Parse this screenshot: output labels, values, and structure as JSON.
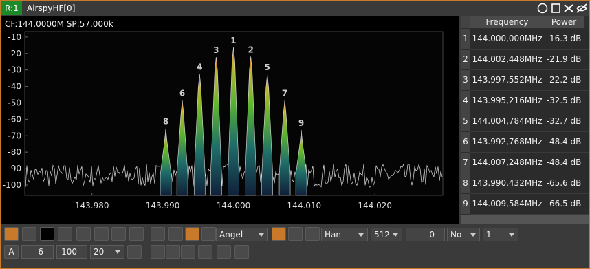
{
  "title_bar": {
    "badge": "R:1",
    "device": "AirspyHF[0]"
  },
  "spectrum": {
    "type": "spectrum",
    "info": "CF:144.0000M SP:57.000k",
    "xlim": [
      143.9705,
      144.0296
    ],
    "ylim": [
      -106.3,
      -6.7
    ],
    "xticks": [
      {
        "value": 143.98,
        "label": "143.980"
      },
      {
        "value": 143.99,
        "label": "143.990"
      },
      {
        "value": 144.0,
        "label": "144.000"
      },
      {
        "value": 144.01,
        "label": "144.010"
      },
      {
        "value": 144.02,
        "label": "144.020"
      }
    ],
    "yticks": [
      -10,
      -20,
      -30,
      -40,
      -50,
      -60,
      -70,
      -80,
      -90,
      -100
    ],
    "peaks": [
      {
        "x": 144.0,
        "y": -16.3
      },
      {
        "x": 144.002448,
        "y": -21.9
      },
      {
        "x": 143.997552,
        "y": -22.2
      },
      {
        "x": 143.995216,
        "y": -32.5
      },
      {
        "x": 144.004784,
        "y": -32.7
      },
      {
        "x": 143.992768,
        "y": -48.4
      },
      {
        "x": 144.007248,
        "y": -48.4
      },
      {
        "x": 143.990432,
        "y": -65.6
      },
      {
        "x": 144.009584,
        "y": -66.5
      }
    ]
  },
  "table": {
    "header": [
      "Frequency",
      "Power"
    ],
    "rows": [
      [
        "1",
        "144.000,000MHz",
        "-16.3 dB"
      ],
      [
        "2",
        "144.002,448MHz",
        "-21.9 dB"
      ],
      [
        "3",
        "143.997,552MHz",
        "-22.2 dB"
      ],
      [
        "4",
        "143.995,216MHz",
        "-32.5 dB"
      ],
      [
        "5",
        "144.004,784MHz",
        "-32.7 dB"
      ],
      [
        "6",
        "143.992,768MHz",
        "-48.4 dB"
      ],
      [
        "7",
        "144.007,248MHz",
        "-48.4 dB"
      ],
      [
        "8",
        "143.990,432MHz",
        "-65.6 dB"
      ],
      [
        "9",
        "144.009,584MHz",
        "-66.5 dB"
      ]
    ]
  },
  "toolbar": {
    "palette": "Angel",
    "window": "Han",
    "fft_size": "512",
    "overlap": "0",
    "averaging": "No",
    "avg_count": "1",
    "auto": "A",
    "ref_level": "-6",
    "range": "100",
    "fps": "20"
  }
}
